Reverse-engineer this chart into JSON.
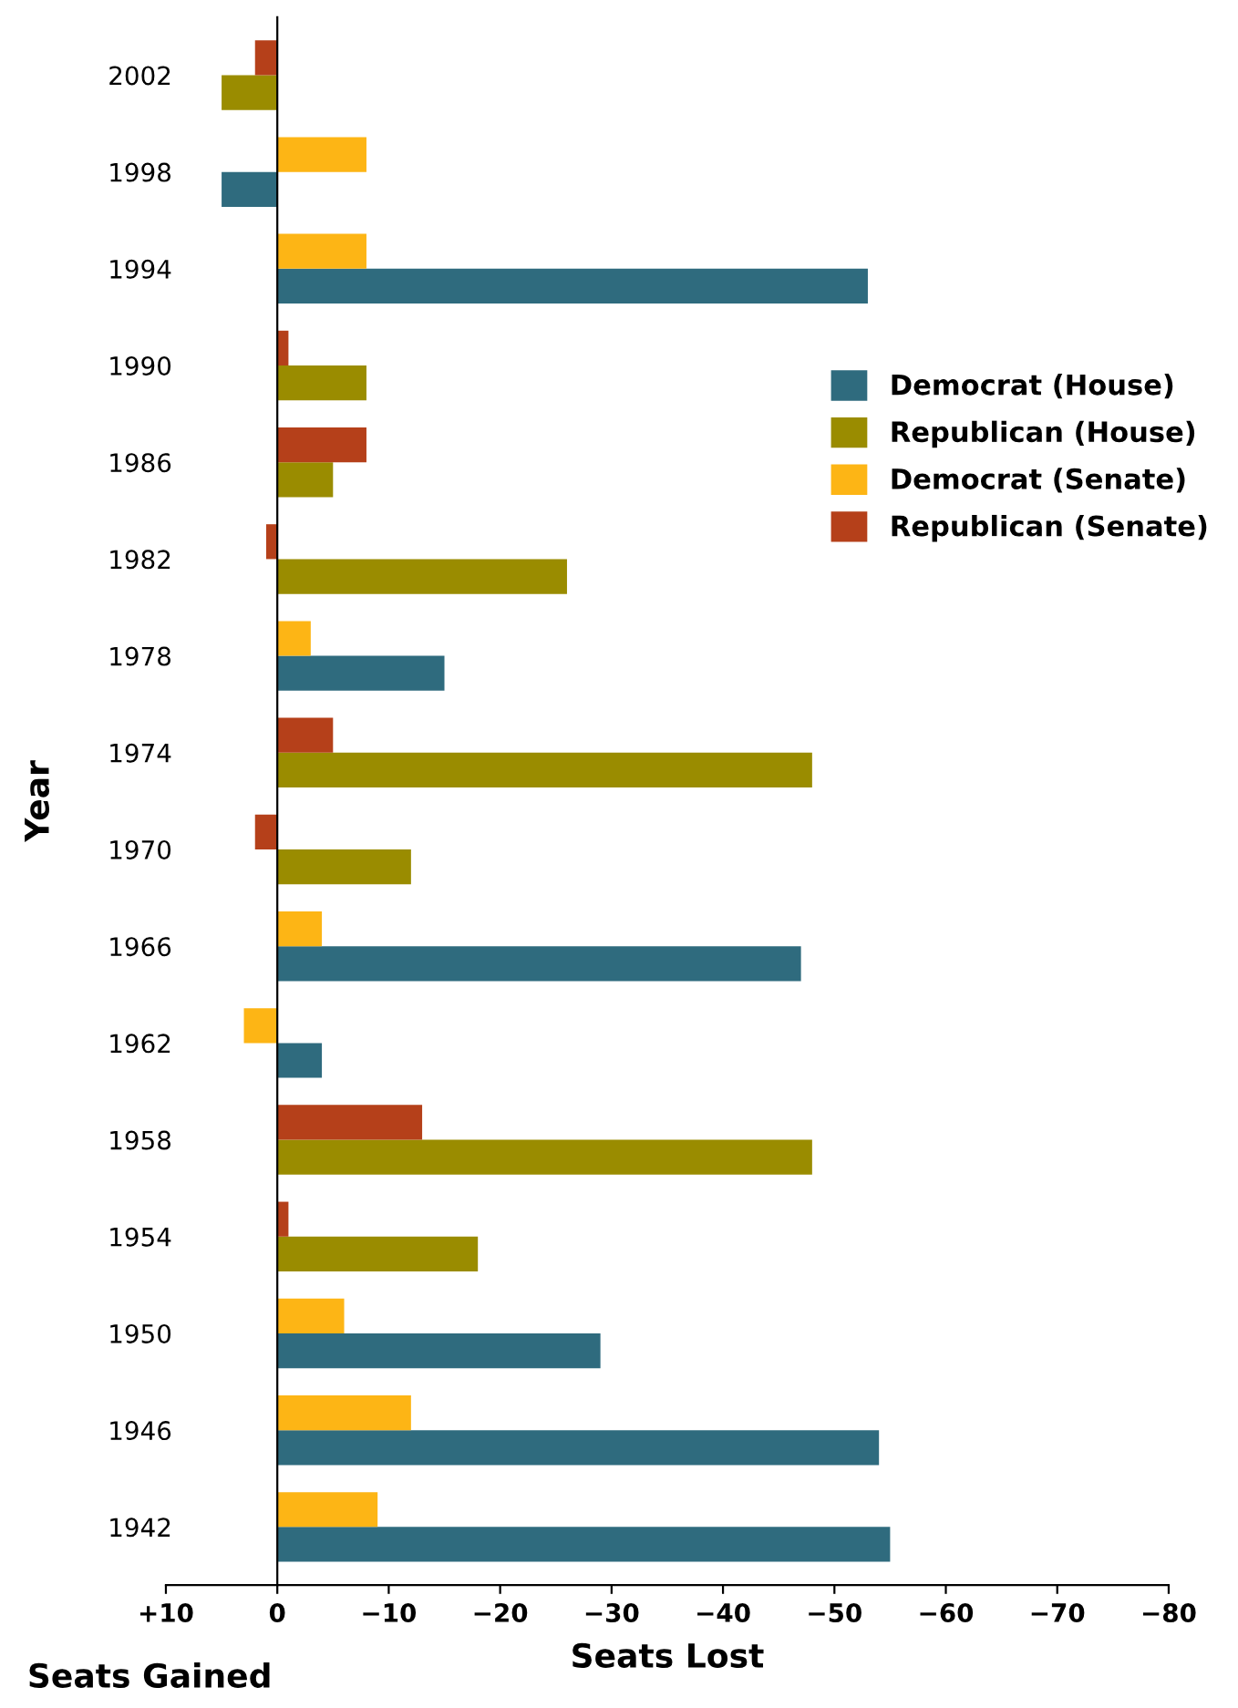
{
  "chart_data": {
    "type": "bar",
    "orientation": "horizontal",
    "ylabel": "Year",
    "xlabel": "Seats Lost",
    "annotations": [
      "Seats Gained"
    ],
    "categories": [
      "2002",
      "1998",
      "1994",
      "1990",
      "1986",
      "1982",
      "1978",
      "1974",
      "1970",
      "1966",
      "1962",
      "1958",
      "1954",
      "1950",
      "1946",
      "1942"
    ],
    "series": [
      {
        "name": "Democrat (House)",
        "color": "#2f6b7e",
        "values": [
          null,
          5,
          -53,
          null,
          null,
          null,
          -15,
          null,
          null,
          -47,
          -4,
          null,
          null,
          -29,
          -54,
          -55
        ]
      },
      {
        "name": "Republican (House)",
        "color": "#9a8c00",
        "values": [
          5,
          null,
          null,
          -8,
          -5,
          -26,
          null,
          -48,
          -12,
          null,
          null,
          -48,
          -18,
          null,
          null,
          null
        ]
      },
      {
        "name": "Democrat (Senate)",
        "color": "#fdb515",
        "values": [
          null,
          -8,
          -8,
          null,
          null,
          null,
          -3,
          null,
          null,
          -4,
          3,
          null,
          null,
          -6,
          -12,
          -9
        ]
      },
      {
        "name": "Republican (Senate)",
        "color": "#b5401a",
        "values": [
          2,
          null,
          null,
          -1,
          -8,
          1,
          null,
          -5,
          2,
          null,
          null,
          -13,
          -1,
          null,
          null,
          null
        ]
      }
    ],
    "xlim": [
      10,
      -80
    ],
    "xticks": [
      {
        "value": 10,
        "label": "+10"
      },
      0,
      {
        "value": -10,
        "label": "−10"
      },
      {
        "value": -20,
        "label": "−20"
      },
      {
        "value": -30,
        "label": "−30"
      },
      {
        "value": -40,
        "label": "−40"
      },
      {
        "value": -50,
        "label": "−50"
      },
      {
        "value": -60,
        "label": "−60"
      },
      {
        "value": -70,
        "label": "−70"
      },
      {
        "value": -80,
        "label": "−80"
      }
    ],
    "legend": "right"
  }
}
